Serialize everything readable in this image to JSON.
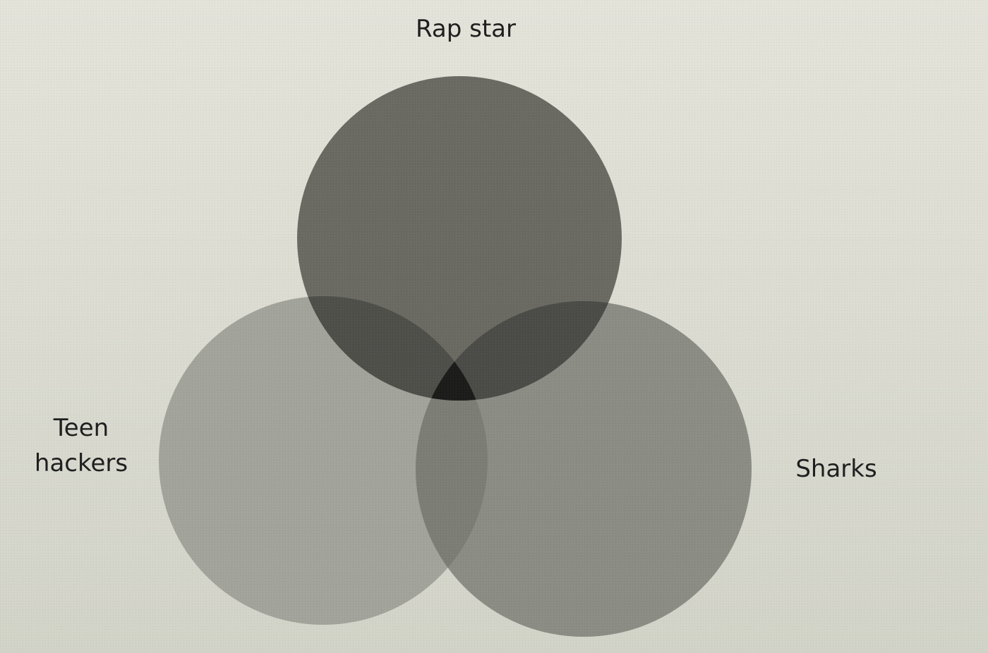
{
  "diagram": {
    "type": "venn",
    "sets": [
      {
        "id": "rap-star",
        "label": "Rap star",
        "color": "#6a6a63"
      },
      {
        "id": "teen-hackers",
        "label_lines": [
          "Teen",
          "hackers"
        ],
        "color": "#a2a39a"
      },
      {
        "id": "sharks",
        "label": "Sharks",
        "color": "#8b8c84"
      }
    ],
    "overlap_colors": {
      "rap_teen": "#4f4f4a",
      "rap_sharks": "#4b4b47",
      "teen_sharks": "#7c7d75",
      "all_three": "#1c1c1a"
    }
  }
}
